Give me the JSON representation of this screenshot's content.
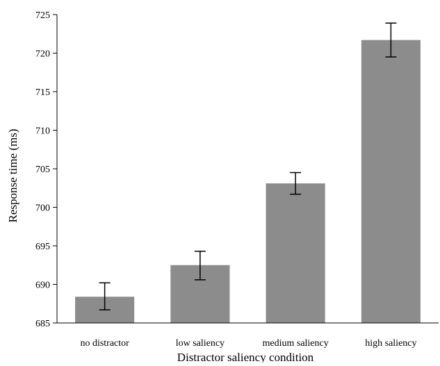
{
  "chart_data": {
    "type": "bar",
    "categories": [
      "no distractor",
      "low saliency",
      "medium saliency",
      "high saliency"
    ],
    "values": [
      688.4,
      692.5,
      703.1,
      721.7
    ],
    "error": [
      {
        "low": 686.7,
        "high": 690.2
      },
      {
        "low": 690.6,
        "high": 694.3
      },
      {
        "low": 701.7,
        "high": 704.5
      },
      {
        "low": 719.5,
        "high": 723.9
      }
    ],
    "xlabel": "Distractor saliency condition",
    "ylabel": "Response time (ms)",
    "ylim": [
      685,
      725
    ],
    "yticks": [
      685,
      690,
      695,
      700,
      705,
      710,
      715,
      720,
      725
    ],
    "grid": false,
    "legend": "none",
    "bar_color": "#8c8c8c",
    "axis_color": "#000000"
  }
}
